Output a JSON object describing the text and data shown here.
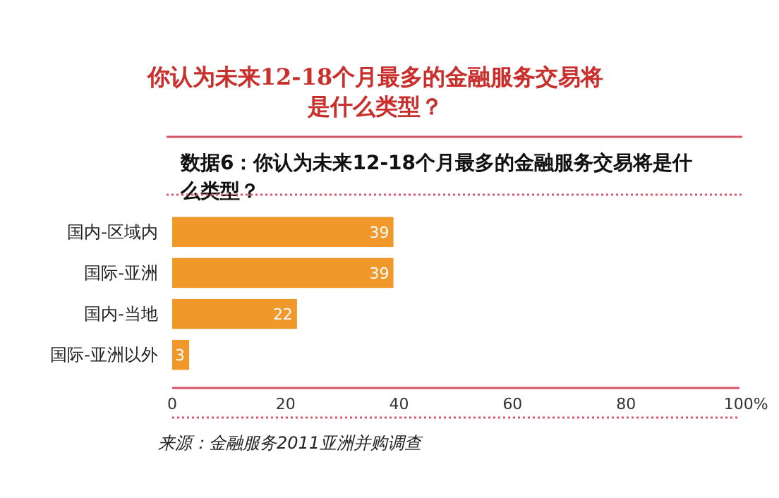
{
  "chart_data": {
    "type": "bar",
    "orientation": "horizontal",
    "title": "你认为未来12-18个月最多的金融服务交易将是什么类型？",
    "subtitle": "数据6：你认为未来12-18个月最多的金融服务交易将是什么类型？",
    "categories": [
      "国内-区域内",
      "国际-亚洲",
      "国内-当地",
      "国际-亚洲以外"
    ],
    "values": [
      39,
      39,
      22,
      3
    ],
    "color": "#f0982a",
    "value_labels": [
      "39",
      "39",
      "22",
      "3"
    ],
    "xlim": [
      0,
      100
    ],
    "xticks": [
      0,
      20,
      40,
      60,
      80,
      {
        "value": 100,
        "label": "100%"
      }
    ],
    "grid": false,
    "annotations": [
      "来源：金融服务2011亚洲并购调查"
    ]
  }
}
